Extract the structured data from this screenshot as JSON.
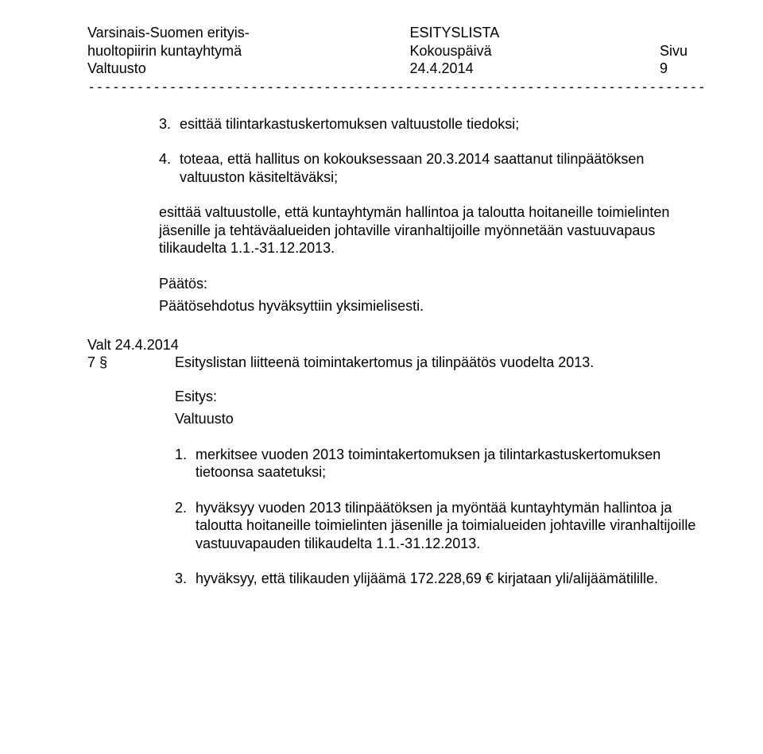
{
  "header": {
    "left1": "Varsinais-Suomen erityis-",
    "left2": "huoltopiirin kuntayhtymä",
    "left3": "Valtuusto",
    "mid1": "ESITYSLISTA",
    "mid2": "Kokouspäivä",
    "mid3": "24.4.2014",
    "right2": "Sivu",
    "right3": "9"
  },
  "divider": "----------------------------------------------------------------------------------------------------------------------------",
  "items_top": [
    {
      "n": "3.",
      "text": "esittää tilintarkastuskertomuksen valtuustolle tiedoksi;"
    },
    {
      "n": "4.",
      "text": "toteaa, että hallitus on kokouksessaan 20.3.2014 saattanut tilinpäätöksen valtuuston käsiteltäväksi;"
    }
  ],
  "para1": "esittää valtuustolle, että kuntayhtymän hallintoa ja taloutta hoitaneille toimielinten jäsenille ja tehtäväalueiden johtaville viranhaltijoille myönnetään vastuuvapaus tilikaudelta 1.1.-31.12.2013.",
  "paatos_label": "Päätös:",
  "paatos_text": "Päätösehdotus hyväksyttiin yksimielisesti.",
  "valt_line": "Valt 24.4.2014",
  "agenda": {
    "num": "7 §",
    "text": "Esityslistan liitteenä toimintakertomus ja tilinpäätös vuodelta 2013."
  },
  "esitys_label": "Esitys:",
  "valtuusto_label": "Valtuusto",
  "items_bottom": [
    {
      "n": "1.",
      "text": "merkitsee vuoden 2013 toimintakertomuksen ja tilintarkastuskertomuksen tietoonsa saatetuksi;"
    },
    {
      "n": "2.",
      "text": "hyväksyy vuoden 2013 tilinpäätöksen ja myöntää kuntayhtymän hallintoa ja taloutta hoitaneille toimielinten jäsenille ja toimialueiden johtaville viranhaltijoille vastuuvapauden tilikaudelta 1.1.-31.12.2013."
    },
    {
      "n": "3.",
      "text": "hyväksyy, että tilikauden ylijäämä 172.228,69 € kirjataan yli/alijäämätilille."
    }
  ]
}
